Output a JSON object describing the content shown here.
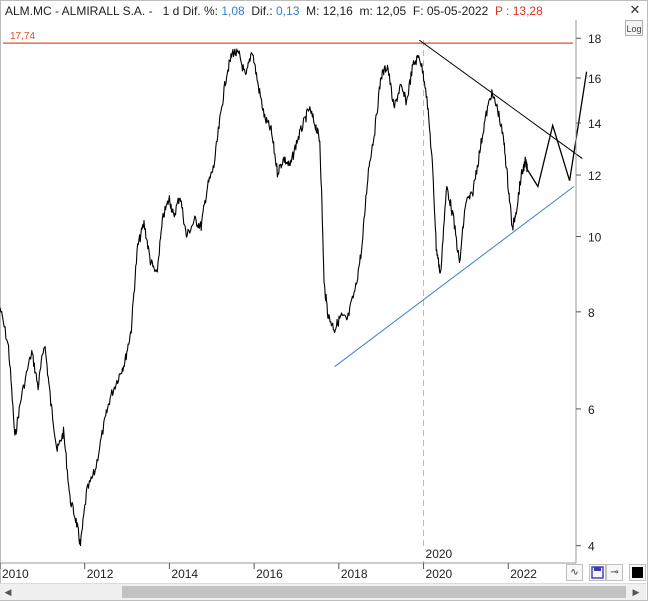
{
  "header": {
    "symbol": "ALM.MC - ALMIRALL S.A. -",
    "period": "1 d",
    "dif_pct_label": "Dif. %:",
    "dif_pct_value": "1,08",
    "dif_label": "Dif.:",
    "dif_value": "0,13",
    "max_label": "M:",
    "max_value": "12,16",
    "min_label": "m:",
    "min_value": "12,05",
    "date_label": "F:",
    "date_value": "05-05-2022",
    "price_label": "P :",
    "price_value": "13,28",
    "value_color_blue": "#3a7fcf",
    "value_color_red": "#e0301e"
  },
  "controls": {
    "log_label": "Log",
    "close_icon": "close-icon",
    "scroll_left_icon": "arrow-left-icon",
    "scroll_right_icon": "arrow-right-icon"
  },
  "chart_data": {
    "type": "line",
    "scale": "log",
    "ylim": [
      3.8,
      19
    ],
    "xlim": [
      2010,
      2023.6
    ],
    "y_ticks": [
      4,
      6,
      8,
      10,
      12,
      14,
      16,
      18
    ],
    "x_ticks": [
      "2010",
      "2012",
      "2014",
      "2016",
      "2018",
      "2020",
      "2022"
    ],
    "cursor_date_label": "2020",
    "cursor_x": 2020.0,
    "series": [
      {
        "color": "#000000",
        "points": [
          [
            2010.0,
            8.1
          ],
          [
            2010.2,
            7.2
          ],
          [
            2010.35,
            5.5
          ],
          [
            2010.5,
            6.2
          ],
          [
            2010.75,
            7.1
          ],
          [
            2010.9,
            6.4
          ],
          [
            2011.05,
            7.3
          ],
          [
            2011.2,
            6.1
          ],
          [
            2011.35,
            5.3
          ],
          [
            2011.5,
            5.6
          ],
          [
            2011.65,
            4.6
          ],
          [
            2011.8,
            4.3
          ],
          [
            2011.9,
            4.0
          ],
          [
            2012.05,
            4.7
          ],
          [
            2012.25,
            5.0
          ],
          [
            2012.45,
            5.7
          ],
          [
            2012.6,
            6.2
          ],
          [
            2012.8,
            6.6
          ],
          [
            2012.95,
            6.9
          ],
          [
            2013.1,
            7.6
          ],
          [
            2013.25,
            9.7
          ],
          [
            2013.4,
            10.4
          ],
          [
            2013.55,
            9.3
          ],
          [
            2013.7,
            8.9
          ],
          [
            2013.85,
            10.6
          ],
          [
            2014.0,
            11.2
          ],
          [
            2014.1,
            10.6
          ],
          [
            2014.25,
            11.3
          ],
          [
            2014.4,
            10.0
          ],
          [
            2014.6,
            10.5
          ],
          [
            2014.75,
            10.3
          ],
          [
            2014.9,
            11.6
          ],
          [
            2015.05,
            12.3
          ],
          [
            2015.2,
            14.2
          ],
          [
            2015.35,
            16.2
          ],
          [
            2015.5,
            17.3
          ],
          [
            2015.65,
            17.1
          ],
          [
            2015.8,
            16.0
          ],
          [
            2015.95,
            17.4
          ],
          [
            2016.1,
            15.6
          ],
          [
            2016.25,
            14.2
          ],
          [
            2016.4,
            13.7
          ],
          [
            2016.55,
            12.1
          ],
          [
            2016.7,
            12.6
          ],
          [
            2016.85,
            12.3
          ],
          [
            2017.0,
            13.2
          ],
          [
            2017.15,
            13.9
          ],
          [
            2017.3,
            14.6
          ],
          [
            2017.45,
            13.9
          ],
          [
            2017.55,
            13.3
          ],
          [
            2017.65,
            8.7
          ],
          [
            2017.75,
            7.9
          ],
          [
            2017.9,
            7.6
          ],
          [
            2018.05,
            7.9
          ],
          [
            2018.2,
            7.8
          ],
          [
            2018.4,
            8.6
          ],
          [
            2018.55,
            9.7
          ],
          [
            2018.7,
            12.2
          ],
          [
            2018.85,
            13.7
          ],
          [
            2019.0,
            16.1
          ],
          [
            2019.15,
            16.6
          ],
          [
            2019.3,
            14.6
          ],
          [
            2019.45,
            15.6
          ],
          [
            2019.6,
            14.9
          ],
          [
            2019.75,
            16.6
          ],
          [
            2019.9,
            17.1
          ],
          [
            2020.05,
            15.6
          ],
          [
            2020.2,
            12.6
          ],
          [
            2020.3,
            9.7
          ],
          [
            2020.4,
            8.9
          ],
          [
            2020.55,
            11.6
          ],
          [
            2020.7,
            10.6
          ],
          [
            2020.85,
            9.2
          ],
          [
            2021.0,
            11.1
          ],
          [
            2021.15,
            11.3
          ],
          [
            2021.3,
            12.6
          ],
          [
            2021.45,
            14.1
          ],
          [
            2021.6,
            15.3
          ],
          [
            2021.75,
            14.6
          ],
          [
            2021.9,
            13.2
          ],
          [
            2022.0,
            11.6
          ],
          [
            2022.1,
            10.2
          ],
          [
            2022.2,
            10.9
          ],
          [
            2022.3,
            11.9
          ],
          [
            2022.4,
            12.5
          ],
          [
            2022.45,
            12.2
          ]
        ]
      }
    ],
    "projection": {
      "color": "#000000",
      "points": [
        [
          2022.45,
          12.2
        ],
        [
          2022.7,
          11.6
        ],
        [
          2023.05,
          13.9
        ],
        [
          2023.45,
          11.8
        ],
        [
          2023.85,
          16.3
        ]
      ]
    },
    "resistance_line": {
      "color": "#000000",
      "points": [
        [
          2019.9,
          17.9
        ],
        [
          2023.75,
          12.6
        ]
      ]
    },
    "support_line": {
      "color": "#3a7fcf",
      "points": [
        [
          2017.9,
          6.8
        ],
        [
          2023.55,
          11.6
        ]
      ]
    },
    "horizontal_line": {
      "label": "17,74",
      "value": 17.74,
      "color": "#e05020"
    }
  }
}
